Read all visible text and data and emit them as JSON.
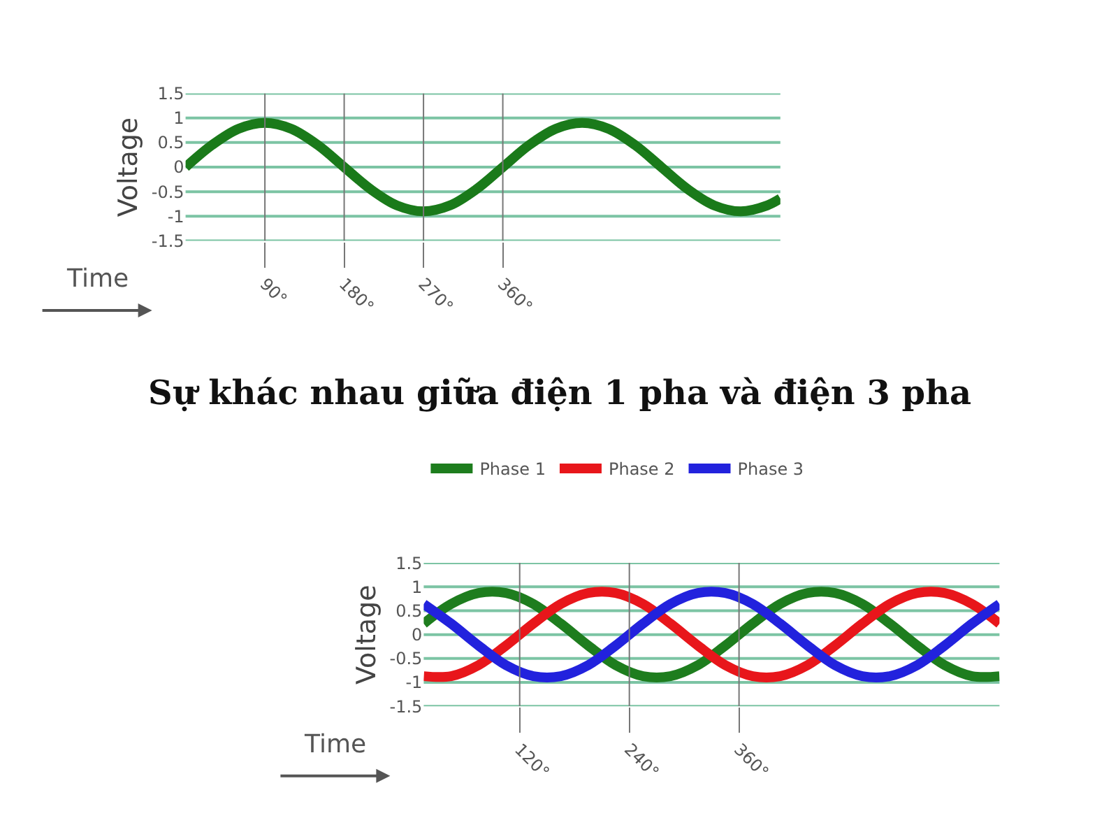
{
  "chart_data": [
    {
      "type": "line",
      "xlabel": "Time",
      "ylabel": "Voltage",
      "x": [
        0,
        30,
        60,
        90,
        120,
        150,
        180,
        210,
        240,
        270,
        300,
        330,
        360,
        390,
        420,
        450,
        480,
        510,
        540,
        570,
        600,
        630,
        660,
        675
      ],
      "series": [
        {
          "color": "#1a7a1a",
          "values": [
            0,
            0.45,
            0.78,
            0.9,
            0.78,
            0.45,
            0,
            -0.45,
            -0.78,
            -0.9,
            -0.78,
            -0.45,
            0,
            0.45,
            0.78,
            0.9,
            0.78,
            0.45,
            0,
            -0.45,
            -0.78,
            -0.9,
            -0.78,
            -0.64
          ]
        }
      ],
      "xlim": [
        0,
        675
      ],
      "xticks": [
        {
          "value": 90,
          "label": "90°"
        },
        {
          "value": 180,
          "label": "180°"
        },
        {
          "value": 270,
          "label": "270°"
        },
        {
          "value": 360,
          "label": "360°"
        }
      ],
      "ylim": [
        -1.5,
        1.5
      ],
      "yticks": [
        -1.5,
        -1,
        -0.5,
        0,
        0.5,
        1,
        1.5
      ],
      "grid": true,
      "marker": "none",
      "line_style": "solid"
    },
    {
      "type": "line",
      "title": "Sự khác nhau giữa điện 1 pha và điện 3 pha",
      "xlabel": "Time",
      "ylabel": "Voltage",
      "x": [
        15,
        45,
        75,
        105,
        135,
        165,
        195,
        225,
        255,
        285,
        315,
        345,
        375,
        405,
        435,
        465,
        495,
        525,
        555,
        585,
        615,
        645
      ],
      "series": [
        {
          "name": "Phase 1",
          "color": "#1e7d1e",
          "values": [
            0.23,
            0.64,
            0.87,
            0.87,
            0.64,
            0.23,
            -0.23,
            -0.64,
            -0.87,
            -0.87,
            -0.64,
            -0.23,
            0.23,
            0.64,
            0.87,
            0.87,
            0.64,
            0.23,
            -0.23,
            -0.64,
            -0.87,
            -0.87
          ]
        },
        {
          "name": "Phase 2",
          "color": "#e8161b",
          "values": [
            -0.87,
            -0.87,
            -0.64,
            -0.23,
            0.23,
            0.64,
            0.87,
            0.87,
            0.64,
            0.23,
            -0.23,
            -0.64,
            -0.87,
            -0.87,
            -0.64,
            -0.23,
            0.23,
            0.64,
            0.87,
            0.87,
            0.64,
            0.23
          ]
        },
        {
          "name": "Phase 3",
          "color": "#2222dd",
          "values": [
            0.64,
            0.23,
            -0.23,
            -0.64,
            -0.87,
            -0.87,
            -0.64,
            -0.23,
            0.23,
            0.64,
            0.87,
            0.87,
            0.64,
            0.23,
            -0.23,
            -0.64,
            -0.87,
            -0.87,
            -0.64,
            -0.23,
            0.23,
            0.64
          ]
        }
      ],
      "xlim": [
        15,
        645
      ],
      "xticks": [
        {
          "value": 120,
          "label": "120°"
        },
        {
          "value": 240,
          "label": "240°"
        },
        {
          "value": 360,
          "label": "360°"
        }
      ],
      "ylim": [
        -1.5,
        1.5
      ],
      "yticks": [
        -1.5,
        -1,
        -0.5,
        0,
        0.5,
        1,
        1.5
      ],
      "grid": true,
      "legend": "top",
      "marker": "none",
      "line_style": "solid"
    }
  ]
}
